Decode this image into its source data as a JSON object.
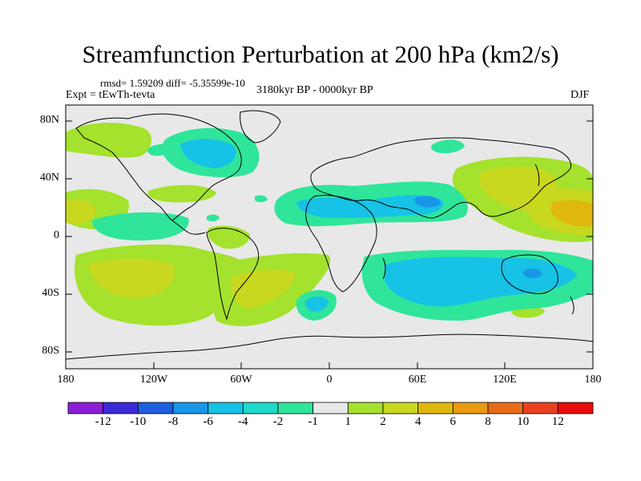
{
  "title": "Streamfunction Perturbation at 200 hPa (km2/s)",
  "stats": "rmsd= 1.59209 diff= -5.35599e-10",
  "experiment": "Expt = tEwTh-tevta",
  "period": "3180kyr BP - 0000kyr BP",
  "season": "DJF",
  "lat_ticks": [
    "80N",
    "40N",
    "0",
    "40S",
    "80S"
  ],
  "lon_ticks": [
    "180",
    "120W",
    "60W",
    "0",
    "60E",
    "120E",
    "180"
  ],
  "colorbar": {
    "labels": [
      "-12",
      "-10",
      "-8",
      "-6",
      "-4",
      "-2",
      "-1",
      "1",
      "2",
      "4",
      "6",
      "8",
      "10",
      "12"
    ],
    "colors": [
      "#8a1fd6",
      "#3a2ad8",
      "#1d5fe0",
      "#1a96e8",
      "#16c2e6",
      "#1ed9c8",
      "#2fe59a",
      "#e8e8e8",
      "#a4e22d",
      "#c8d81f",
      "#e0b80d",
      "#e89a10",
      "#e86c18",
      "#e84020",
      "#e80c0c"
    ]
  },
  "map_colors": {
    "background": "#e8e8e8",
    "pos1": "#a4e22d",
    "pos2": "#c8d81f",
    "pos3": "#e0b80d",
    "neg1": "#2fe59a",
    "neg2": "#16c2e6",
    "neg3": "#1a96e8"
  }
}
